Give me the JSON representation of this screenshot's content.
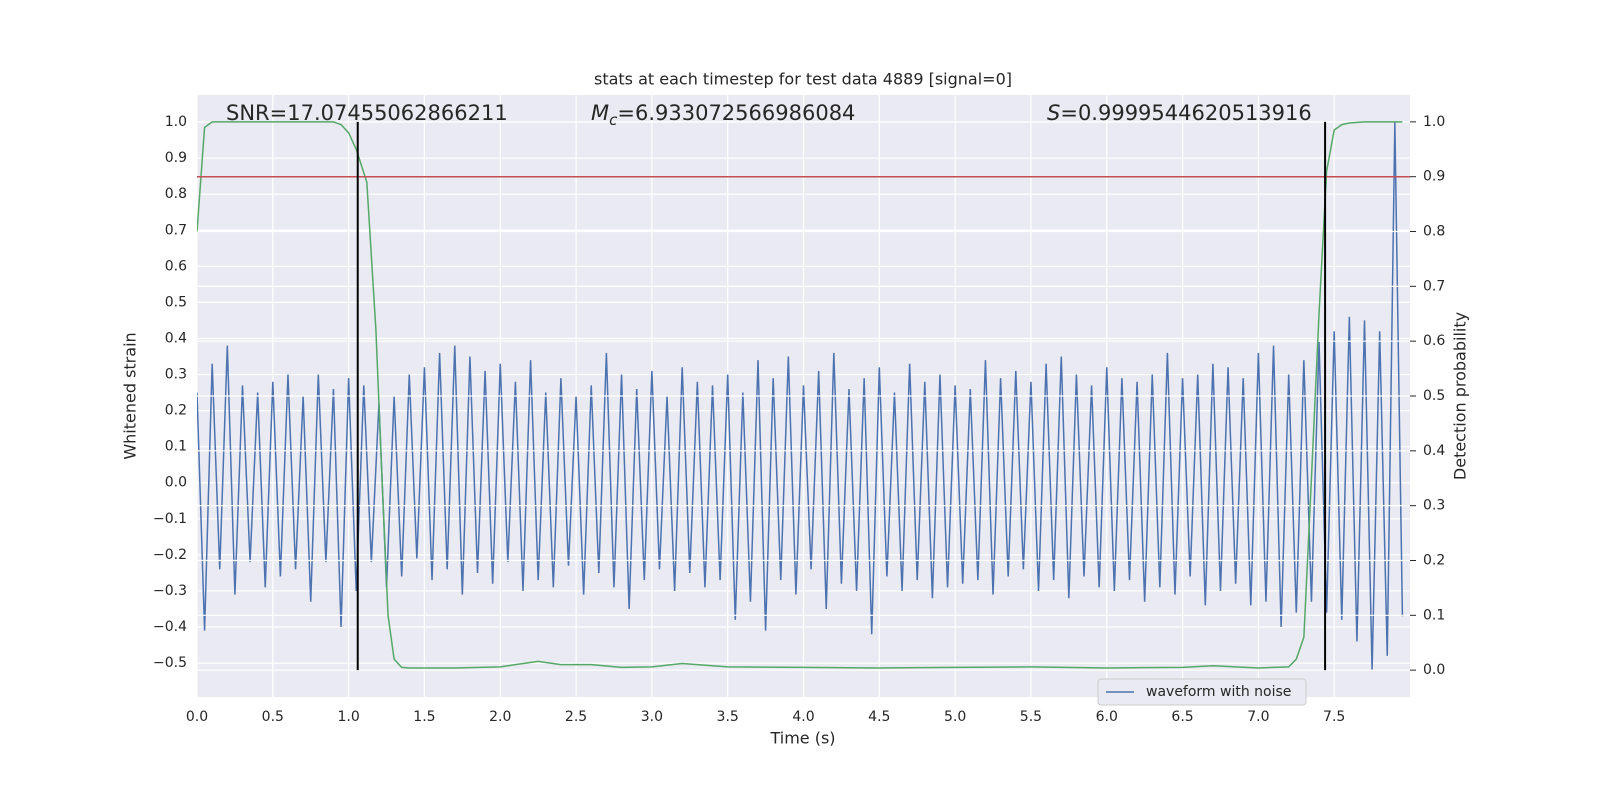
{
  "chart_data": {
    "type": "line",
    "title": "stats at each timestep for test data 4889 [signal=0]",
    "x_label": "Time (s)",
    "y_label": "Whitened strain",
    "y2_label": "Detection probability",
    "xlim": [
      0,
      8
    ],
    "ylim": [
      -0.594,
      1.075
    ],
    "y2lim": [
      -0.049,
      1.049
    ],
    "xticks": [
      {
        "value": 0,
        "label": "0.0"
      },
      0.5,
      {
        "value": 1,
        "label": "1.0"
      },
      1.5,
      {
        "value": 2,
        "label": "2.0"
      },
      2.5,
      {
        "value": 3,
        "label": "3.0"
      },
      3.5,
      {
        "value": 4,
        "label": "4.0"
      },
      4.5,
      {
        "value": 5,
        "label": "5.0"
      },
      5.5,
      {
        "value": 6,
        "label": "6.0"
      },
      6.5,
      {
        "value": 7,
        "label": "7.0"
      },
      7.5
    ],
    "yticks": [
      {
        "value": -0.5,
        "label": "−0.5"
      },
      {
        "value": -0.4,
        "label": "−0.4"
      },
      {
        "value": -0.3,
        "label": "−0.3"
      },
      {
        "value": -0.2,
        "label": "−0.2"
      },
      {
        "value": -0.1,
        "label": "−0.1"
      },
      {
        "value": 0,
        "label": "0.0"
      },
      0.1,
      0.2,
      0.3,
      0.4,
      0.5,
      0.6,
      0.7,
      0.8,
      0.9,
      {
        "value": 1,
        "label": "1.0"
      }
    ],
    "y2ticks": [
      {
        "value": 0,
        "label": "0.0"
      },
      0.1,
      0.2,
      0.3,
      0.4,
      0.5,
      0.6,
      0.7,
      0.8,
      0.9,
      {
        "value": 1,
        "label": "1.0"
      }
    ],
    "grid": true,
    "legend": "lower right",
    "series": [
      {
        "name": "waveform with noise",
        "color": "#4c72b0",
        "x": [
          0,
          0.05,
          0.1,
          0.15,
          0.2,
          0.25,
          0.3,
          0.35,
          0.4,
          0.45,
          0.5,
          0.55,
          0.6,
          0.65,
          0.7,
          0.75,
          0.8,
          0.85,
          0.9,
          0.95,
          1,
          1.05,
          1.1,
          1.15,
          1.2,
          1.25,
          1.3,
          1.35,
          1.4,
          1.45,
          1.5,
          1.55,
          1.6,
          1.65,
          1.7,
          1.75,
          1.8,
          1.85,
          1.9,
          1.95,
          2,
          2.05,
          2.1,
          2.15,
          2.2,
          2.25,
          2.3,
          2.35,
          2.4,
          2.45,
          2.5,
          2.55,
          2.6,
          2.65,
          2.7,
          2.75,
          2.8,
          2.85,
          2.9,
          2.95,
          3,
          3.05,
          3.1,
          3.15,
          3.2,
          3.25,
          3.3,
          3.35,
          3.4,
          3.45,
          3.5,
          3.55,
          3.6,
          3.65,
          3.7,
          3.75,
          3.8,
          3.85,
          3.9,
          3.95,
          4,
          4.05,
          4.1,
          4.15,
          4.2,
          4.25,
          4.3,
          4.35,
          4.4,
          4.45,
          4.5,
          4.55,
          4.6,
          4.65,
          4.7,
          4.75,
          4.8,
          4.85,
          4.9,
          4.95,
          5,
          5.05,
          5.1,
          5.15,
          5.2,
          5.25,
          5.3,
          5.35,
          5.4,
          5.45,
          5.5,
          5.55,
          5.6,
          5.65,
          5.7,
          5.75,
          5.8,
          5.85,
          5.9,
          5.95,
          6,
          6.05,
          6.1,
          6.15,
          6.2,
          6.25,
          6.3,
          6.35,
          6.4,
          6.45,
          6.5,
          6.55,
          6.6,
          6.65,
          6.7,
          6.75,
          6.8,
          6.85,
          6.9,
          6.95,
          7,
          7.05,
          7.1,
          7.15,
          7.2,
          7.25,
          7.3,
          7.35,
          7.4,
          7.45,
          7.5,
          7.55,
          7.6,
          7.65,
          7.7,
          7.75,
          7.8,
          7.85,
          7.9,
          7.95
        ],
        "values": [
          0.25,
          -0.41,
          0.33,
          -0.24,
          0.38,
          -0.31,
          0.27,
          -0.22,
          0.25,
          -0.29,
          0.28,
          -0.26,
          0.3,
          -0.24,
          0.24,
          -0.33,
          0.3,
          -0.22,
          0.26,
          -0.4,
          0.29,
          -0.3,
          0.27,
          -0.22,
          0.22,
          -0.29,
          0.24,
          -0.26,
          0.3,
          -0.21,
          0.32,
          -0.27,
          0.36,
          -0.24,
          0.38,
          -0.31,
          0.35,
          -0.25,
          0.31,
          -0.28,
          0.33,
          -0.22,
          0.28,
          -0.3,
          0.34,
          -0.27,
          0.25,
          -0.29,
          0.29,
          -0.23,
          0.24,
          -0.31,
          0.27,
          -0.25,
          0.36,
          -0.29,
          0.3,
          -0.35,
          0.26,
          -0.27,
          0.31,
          -0.24,
          0.24,
          -0.3,
          0.32,
          -0.25,
          0.28,
          -0.29,
          0.27,
          -0.27,
          0.3,
          -0.38,
          0.25,
          -0.33,
          0.34,
          -0.41,
          0.29,
          -0.27,
          0.35,
          -0.31,
          0.27,
          -0.24,
          0.31,
          -0.35,
          0.36,
          -0.28,
          0.26,
          -0.3,
          0.29,
          -0.42,
          0.32,
          -0.26,
          0.25,
          -0.3,
          0.33,
          -0.27,
          0.28,
          -0.32,
          0.3,
          -0.29,
          0.27,
          -0.28,
          0.26,
          -0.27,
          0.34,
          -0.31,
          0.29,
          -0.26,
          0.31,
          -0.24,
          0.28,
          -0.3,
          0.33,
          -0.27,
          0.35,
          -0.32,
          0.3,
          -0.26,
          0.27,
          -0.29,
          0.32,
          -0.3,
          0.29,
          -0.27,
          0.28,
          -0.33,
          0.3,
          -0.29,
          0.36,
          -0.31,
          0.29,
          -0.26,
          0.3,
          -0.34,
          0.33,
          -0.3,
          0.32,
          -0.28,
          0.29,
          -0.34,
          0.36,
          -0.33,
          0.38,
          -0.4,
          0.3,
          -0.36,
          0.34,
          -0.33,
          0.39,
          -0.36,
          0.42,
          -0.38,
          0.46,
          -0.44,
          0.45,
          -0.52,
          0.42,
          -0.48,
          1.0,
          -0.37
        ]
      },
      {
        "color": "#55a868",
        "axis": "y2",
        "x": [
          0,
          0.05,
          0.1,
          0.3,
          0.6,
          0.9,
          0.95,
          1.0,
          1.05,
          1.12,
          1.18,
          1.22,
          1.26,
          1.3,
          1.35,
          1.4,
          1.7,
          2.0,
          2.1,
          2.25,
          2.4,
          2.6,
          2.8,
          3.0,
          3.2,
          3.5,
          4.0,
          4.5,
          5.0,
          5.5,
          6.0,
          6.5,
          6.7,
          7.0,
          7.2,
          7.25,
          7.3,
          7.35,
          7.4,
          7.45,
          7.5,
          7.55,
          7.6,
          7.7,
          7.95
        ],
        "values": [
          0.8,
          0.99,
          1.0,
          1.0,
          1.0,
          1.0,
          0.995,
          0.98,
          0.95,
          0.89,
          0.62,
          0.35,
          0.1,
          0.02,
          0.005,
          0.004,
          0.004,
          0.006,
          0.01,
          0.016,
          0.01,
          0.01,
          0.005,
          0.006,
          0.012,
          0.006,
          0.005,
          0.004,
          0.005,
          0.006,
          0.004,
          0.005,
          0.008,
          0.004,
          0.006,
          0.02,
          0.06,
          0.35,
          0.65,
          0.91,
          0.985,
          0.995,
          0.998,
          1.0,
          1.0
        ]
      }
    ],
    "hlines": [
      {
        "value": 0.9,
        "axis": "y2",
        "color": "#c44e52"
      }
    ],
    "vlines": [
      {
        "value": 1.06,
        "span": [
          0,
          1
        ],
        "axis": "y2",
        "color": "#000000"
      },
      {
        "value": 7.44,
        "span": [
          0,
          1
        ],
        "axis": "y2",
        "color": "#000000"
      }
    ],
    "annotations": [
      "SNR=17.07455062866211",
      "Mc=6.933072566986084",
      "S=0.9999544620513916"
    ]
  }
}
